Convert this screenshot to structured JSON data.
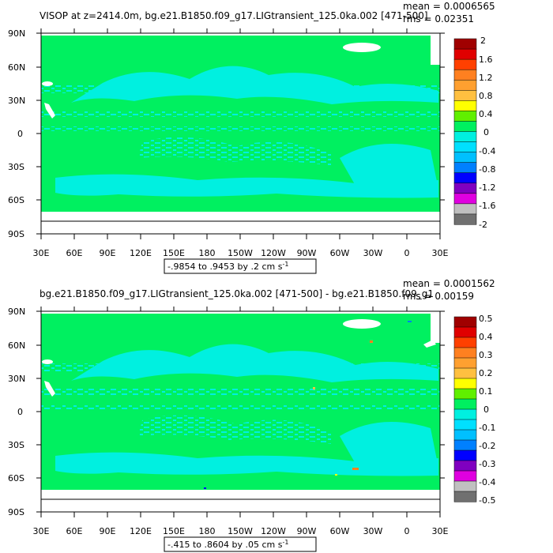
{
  "panels": [
    {
      "title": "VISOP at z=2414.0m, bg.e21.B1850.f09_g17.LIGtransient_125.0ka.002 [471-500]",
      "mean_text": "mean = 0.0006565",
      "rms_text": "rms = 0.02351",
      "range_text": "-.9854 to .9453 by .2 cm s",
      "range_exp": "-1",
      "lat_ticks": [
        "90N",
        "60N",
        "30N",
        "0",
        "30S",
        "60S",
        "90S"
      ],
      "lon_ticks": [
        "30E",
        "60E",
        "90E",
        "120E",
        "150E",
        "180",
        "150W",
        "120W",
        "90W",
        "60W",
        "30W",
        "0",
        "30E"
      ],
      "colorbar_labels": [
        "2",
        "1.6",
        "1.2",
        "0.8",
        "0.4",
        "0",
        "-0.4",
        "-0.8",
        "-1.2",
        "-1.6",
        "-2"
      ]
    },
    {
      "title": "bg.e21.B1850.f09_g17.LIGtransient_125.0ka.002 [471-500] - bg.e21.B1850.f09_g1",
      "mean_text": "mean = 0.0001562",
      "rms_text": "rms = 0.00159",
      "range_text": "-.415 to .8604 by .05 cm s",
      "range_exp": "-1",
      "lat_ticks": [
        "90N",
        "60N",
        "30N",
        "0",
        "30S",
        "60S",
        "90S"
      ],
      "lon_ticks": [
        "30E",
        "60E",
        "90E",
        "120E",
        "150E",
        "180",
        "150W",
        "120W",
        "90W",
        "60W",
        "30W",
        "0",
        "30E"
      ],
      "colorbar_labels": [
        "0.5",
        "0.4",
        "0.3",
        "0.2",
        "0.1",
        "0",
        "-0.1",
        "-0.2",
        "-0.3",
        "-0.4",
        "-0.5"
      ]
    }
  ],
  "colors": {
    "ocean_background": "#00f060",
    "feature": "#00f0e0",
    "land_ice": "#ffffff",
    "colorbar": [
      "#a00000",
      "#e00000",
      "#ff4000",
      "#ff8020",
      "#ffa030",
      "#ffc040",
      "#ffff00",
      "#60f000",
      "#00f060",
      "#00f0e0",
      "#00e0ff",
      "#00c0ff",
      "#0080ff",
      "#0000ff",
      "#8000c0",
      "#e000e0",
      "#c0c0c0",
      "#707070"
    ]
  }
}
